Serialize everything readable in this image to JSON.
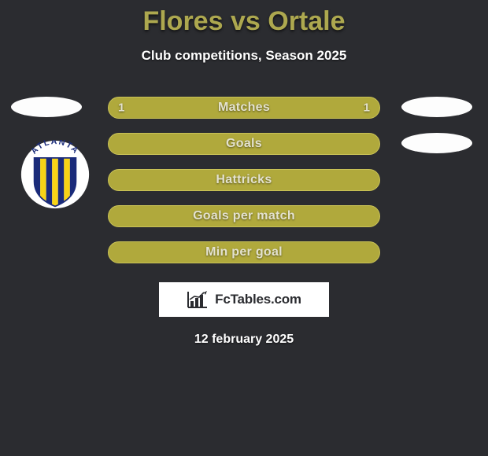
{
  "background_color": "#2b2c30",
  "title": {
    "player1": "Flores",
    "vs": "vs",
    "player2": "Ortale",
    "color": "#ada84f"
  },
  "subtitle": "Club competitions, Season 2025",
  "badge_color": "#fdfdfd",
  "club_logo": {
    "text": "ATLANTA",
    "shield_color": "#1a2b7a",
    "stripe_colors": [
      "#1a2b7a",
      "#f7d416"
    ],
    "outline_color": "#ffffff"
  },
  "rows": [
    {
      "label": "Matches",
      "left": "1",
      "right": "1",
      "fill": "#b0a93c",
      "border": "#c9c257",
      "text": "#e4e2cf",
      "show_left_badge": true,
      "show_right_badge": true
    },
    {
      "label": "Goals",
      "left": "",
      "right": "",
      "fill": "#b0a93c",
      "border": "#c9c257",
      "text": "#e4e2cf",
      "show_left_badge": false,
      "show_right_badge": true
    },
    {
      "label": "Hattricks",
      "left": "",
      "right": "",
      "fill": "#b0a93c",
      "border": "#c9c257",
      "text": "#e4e2cf",
      "show_left_badge": false,
      "show_right_badge": false
    },
    {
      "label": "Goals per match",
      "left": "",
      "right": "",
      "fill": "#b0a93c",
      "border": "#c9c257",
      "text": "#e4e2cf",
      "show_left_badge": false,
      "show_right_badge": false
    },
    {
      "label": "Min per goal",
      "left": "",
      "right": "",
      "fill": "#b0a93c",
      "border": "#c9c257",
      "text": "#e4e2cf",
      "show_left_badge": false,
      "show_right_badge": false
    }
  ],
  "brand": "FcTables.com",
  "date": "12 february 2025"
}
